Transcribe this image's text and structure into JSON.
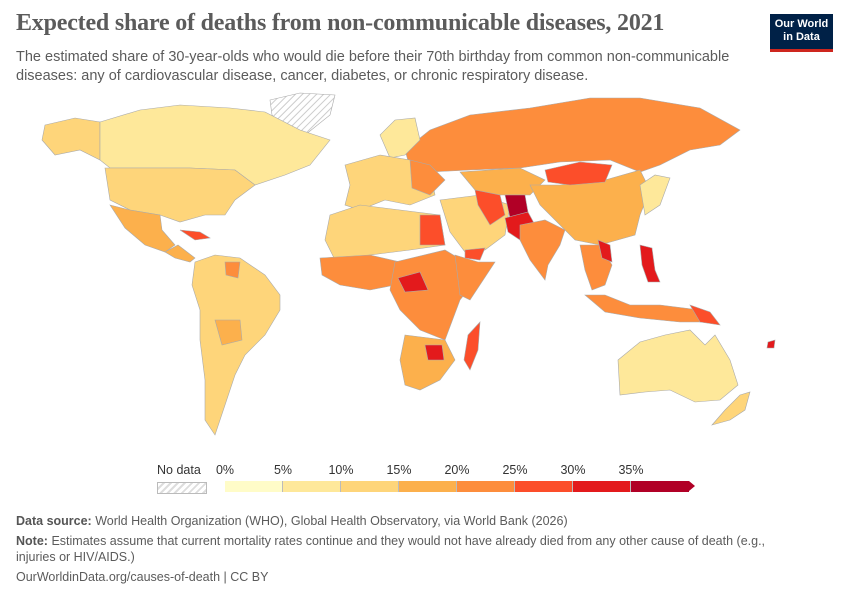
{
  "header": {
    "title": "Expected share of deaths from non-communicable diseases, 2021",
    "subtitle": "The estimated share of 30-year-olds who would die before their 70th birthday from common non-communicable diseases: any of cardiovascular disease, cancer, diabetes, or chronic respiratory disease.",
    "logo_line1": "Our World",
    "logo_line2": "in Data"
  },
  "legend": {
    "no_data_label": "No data",
    "ticks": [
      "0%",
      "5%",
      "10%",
      "15%",
      "20%",
      "25%",
      "30%",
      "35%"
    ],
    "colors": [
      "#fffcc8",
      "#fee89a",
      "#fed57a",
      "#fcb04c",
      "#fd8d3c",
      "#fc4e2a",
      "#e31a1c",
      "#b10026"
    ]
  },
  "footer": {
    "source_label": "Data source:",
    "source_text": "World Health Organization (WHO), Global Health Observatory, via World Bank (2026)",
    "note_label": "Note:",
    "note_text": "Estimates assume that current mortality rates continue and they would not have already died from any other cause of death (e.g., injuries or HIV/AIDS.)",
    "url": "OurWorldinData.org/causes-of-death | CC BY"
  }
}
